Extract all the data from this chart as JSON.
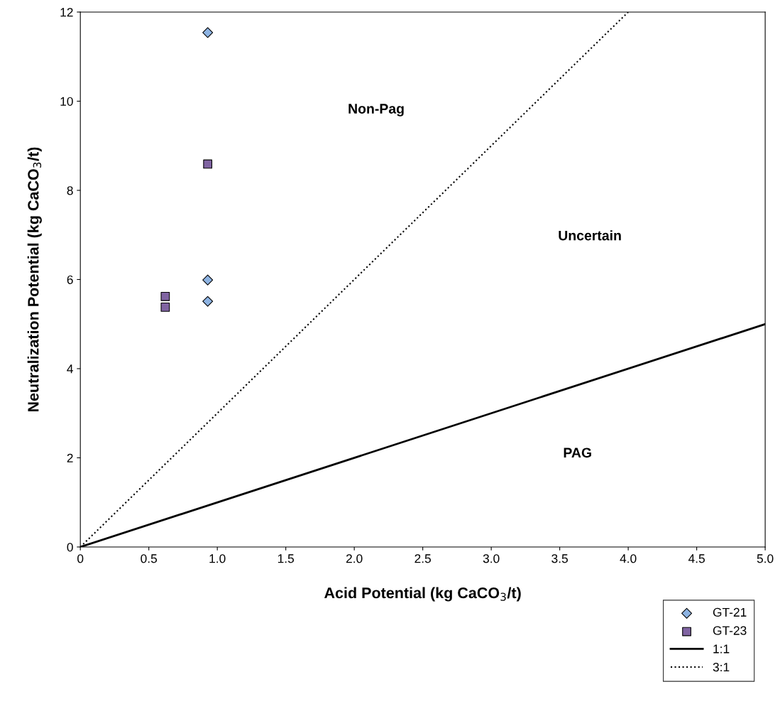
{
  "chart_data": {
    "type": "scatter",
    "xlabel": "Acid Potential (kg CaCO$_{3}$/t)",
    "ylabel": "Neutralization Potential (kg CaCO$_{3}$/t)",
    "xlim": [
      0,
      5.0
    ],
    "ylim": [
      0,
      12
    ],
    "xticks": [
      0,
      {
        "value": 0.5,
        "label": "0.5"
      },
      {
        "value": 1,
        "label": "1.0"
      },
      {
        "value": 1.5,
        "label": "1.5"
      },
      {
        "value": 2,
        "label": "2.0"
      },
      {
        "value": 2.5,
        "label": "2.5"
      },
      {
        "value": 3,
        "label": "3.0"
      },
      {
        "value": 3.5,
        "label": "3.5"
      },
      {
        "value": 4,
        "label": "4.0"
      },
      {
        "value": 4.5,
        "label": "4.5"
      },
      {
        "value": 5,
        "label": "5.0"
      }
    ],
    "yticks": [
      0,
      2,
      4,
      6,
      8,
      10,
      12
    ],
    "grid": false,
    "legend": "bottom right",
    "series": [
      {
        "name": "GT-21",
        "marker": "diamond",
        "color": "#8db3e2",
        "x": [
          0.93,
          0.93,
          0.93
        ],
        "values": [
          11.54,
          5.99,
          5.51
        ]
      },
      {
        "name": "GT-23",
        "marker": "square",
        "color": "#8064a2",
        "x": [
          0.93,
          0.62,
          0.62
        ],
        "values": [
          8.59,
          5.62,
          5.38
        ]
      },
      {
        "name": "1:1",
        "type": "line",
        "line_style": "solid",
        "color": "#000000",
        "x": [
          0,
          5
        ],
        "values": [
          0,
          5
        ]
      },
      {
        "name": "3:1",
        "type": "line",
        "line_style": "dotted",
        "color": "#000000",
        "x": [
          0,
          4
        ],
        "values": [
          0,
          12
        ]
      }
    ],
    "annotations": [
      "Non-Pag",
      "Uncertain",
      "PAG"
    ]
  }
}
